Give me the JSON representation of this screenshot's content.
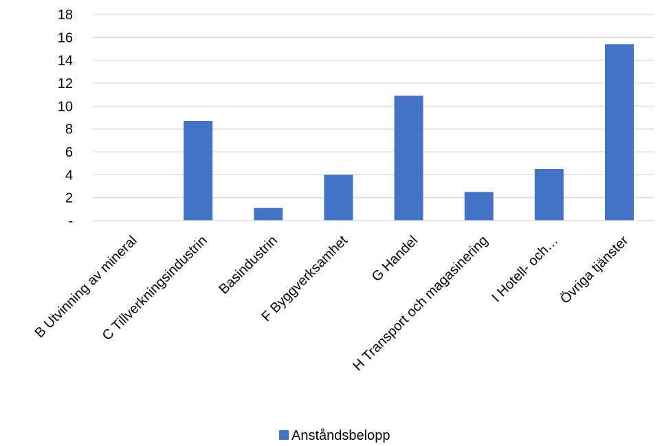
{
  "chart_data": {
    "type": "bar",
    "categories": [
      "B Utvinning av mineral",
      "C Tillverkningsindustrin",
      "Basindustrin",
      "F Byggverksamhet",
      "G Handel",
      "H Transport och magasinering",
      "I Hotell- och…",
      "Övriga tjänster"
    ],
    "series": [
      {
        "name": "Anståndsbelopp",
        "color": "#4472C4",
        "values": [
          0,
          8.7,
          1.1,
          4.0,
          10.9,
          2.5,
          4.5,
          15.4
        ]
      }
    ],
    "title": "",
    "xlabel": "",
    "ylabel": "",
    "ylim": [
      0,
      18
    ],
    "yticks": [
      0,
      2,
      4,
      6,
      8,
      10,
      12,
      14,
      16,
      18
    ],
    "ytick_labels": [
      "-",
      "2",
      "4",
      "6",
      "8",
      "10",
      "12",
      "14",
      "16",
      "18"
    ],
    "grid": true,
    "gridline_color": "#D9D9D9",
    "legend_position": "bottom"
  }
}
